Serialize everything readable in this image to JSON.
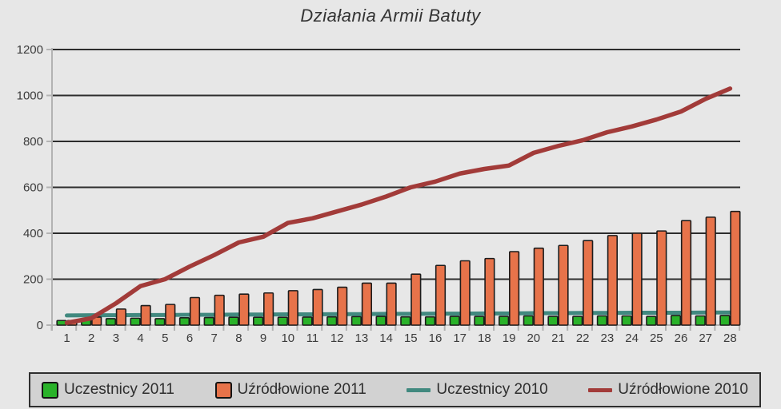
{
  "chart_data": {
    "type": "bar",
    "subtype": "combo-bar-line",
    "title": "Działania Armii Batuty",
    "xlabel": "",
    "ylabel": "",
    "ylim": [
      0,
      1200
    ],
    "yticks": [
      0,
      200,
      400,
      600,
      800,
      1000,
      1200
    ],
    "grid": true,
    "legend_position": "bottom",
    "categories": [
      "1",
      "2",
      "3",
      "4",
      "5",
      "6",
      "7",
      "8",
      "9",
      "10",
      "11",
      "12",
      "13",
      "14",
      "15",
      "16",
      "17",
      "18",
      "19",
      "20",
      "21",
      "22",
      "23",
      "24",
      "25",
      "26",
      "27",
      "28"
    ],
    "series": [
      {
        "name": "Uczestnicy 2011",
        "type": "bar",
        "color": "#29b229",
        "values": [
          20,
          22,
          28,
          30,
          28,
          32,
          33,
          34,
          34,
          34,
          35,
          36,
          37,
          38,
          36,
          36,
          38,
          38,
          38,
          40,
          38,
          38,
          40,
          40,
          38,
          42,
          40,
          42
        ]
      },
      {
        "name": "Uźródłowione 2011",
        "type": "bar",
        "color": "#e7734a",
        "values": [
          20,
          35,
          70,
          85,
          90,
          120,
          130,
          135,
          140,
          150,
          155,
          165,
          183,
          183,
          222,
          260,
          280,
          290,
          320,
          335,
          347,
          368,
          390,
          400,
          410,
          455,
          470,
          495
        ]
      },
      {
        "name": "Uczestnicy 2010",
        "type": "line",
        "color": "#41897f",
        "values": [
          42,
          43,
          43,
          44,
          44,
          45,
          45,
          46,
          46,
          47,
          47,
          48,
          48,
          49,
          49,
          50,
          50,
          51,
          51,
          52,
          52,
          53,
          53,
          54,
          54,
          54,
          55,
          55
        ]
      },
      {
        "name": "Uźródłowione 2010",
        "type": "line",
        "color": "#a23b39",
        "values": [
          10,
          30,
          95,
          170,
          200,
          255,
          305,
          360,
          385,
          445,
          465,
          495,
          525,
          560,
          600,
          625,
          660,
          680,
          695,
          750,
          780,
          805,
          840,
          865,
          895,
          930,
          985,
          1030
        ]
      }
    ],
    "colors": {
      "page_background": "#e7e7e7",
      "gridline": "#2d2d2d",
      "axis_line": "#b3b3b3",
      "axis_label": "#3c3c3c",
      "bar_outline": "#1c1c1c",
      "legend_background": "#d2d2d2",
      "legend_border": "#2f2f2f",
      "title_text": "#333333"
    }
  }
}
